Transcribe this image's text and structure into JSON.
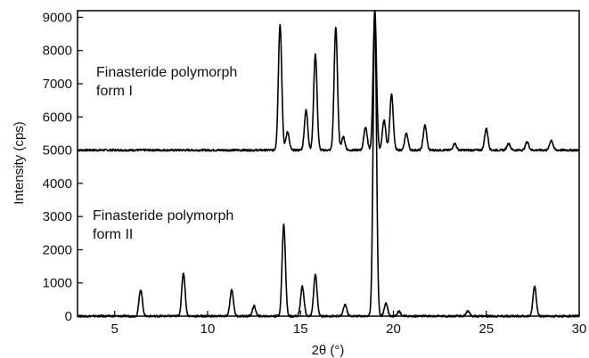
{
  "chart_data": {
    "type": "line",
    "title": "",
    "xlabel": "2θ (°)",
    "ylabel": "Intensity (cps)",
    "xlim": [
      3,
      30
    ],
    "ylim": [
      0,
      9200
    ],
    "xticks": [
      5,
      10,
      15,
      20,
      25,
      30
    ],
    "yticks": [
      0,
      1000,
      2000,
      3000,
      4000,
      5000,
      6000,
      7000,
      8000,
      9000
    ],
    "grid": false,
    "legend": "none",
    "line_color": "#000000",
    "annotations": [
      {
        "lines": [
          "Finasteride polymorph",
          "form I"
        ],
        "series": "form-i"
      },
      {
        "lines": [
          "Finasteride polymorph",
          "form II"
        ],
        "series": "form-ii"
      }
    ],
    "series": [
      {
        "id": "form-i",
        "baseline": 5000,
        "peaks": [
          {
            "x": 13.9,
            "y": 8800
          },
          {
            "x": 14.3,
            "y": 5550
          },
          {
            "x": 15.3,
            "y": 6200
          },
          {
            "x": 15.8,
            "y": 7900
          },
          {
            "x": 16.9,
            "y": 8700
          },
          {
            "x": 17.3,
            "y": 5400
          },
          {
            "x": 18.5,
            "y": 5700
          },
          {
            "x": 19.0,
            "y": 9200
          },
          {
            "x": 19.5,
            "y": 5900
          },
          {
            "x": 19.9,
            "y": 6700
          },
          {
            "x": 20.7,
            "y": 5500
          },
          {
            "x": 21.7,
            "y": 5750
          },
          {
            "x": 23.3,
            "y": 5200
          },
          {
            "x": 25.0,
            "y": 5650
          },
          {
            "x": 26.2,
            "y": 5200
          },
          {
            "x": 27.2,
            "y": 5250
          },
          {
            "x": 28.5,
            "y": 5300
          }
        ]
      },
      {
        "id": "form-ii",
        "baseline": 0,
        "peaks": [
          {
            "x": 6.4,
            "y": 800
          },
          {
            "x": 8.7,
            "y": 1300
          },
          {
            "x": 11.3,
            "y": 800
          },
          {
            "x": 12.5,
            "y": 300
          },
          {
            "x": 14.1,
            "y": 2750
          },
          {
            "x": 15.1,
            "y": 900
          },
          {
            "x": 15.8,
            "y": 1250
          },
          {
            "x": 17.4,
            "y": 350
          },
          {
            "x": 19.0,
            "y": 9200
          },
          {
            "x": 19.6,
            "y": 400
          },
          {
            "x": 20.3,
            "y": 150
          },
          {
            "x": 24.0,
            "y": 150
          },
          {
            "x": 27.6,
            "y": 900
          }
        ]
      }
    ]
  }
}
